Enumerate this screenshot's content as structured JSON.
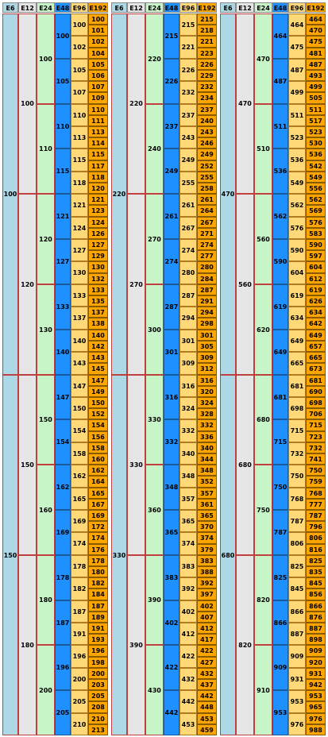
{
  "colors": {
    "E6": "#add8e6",
    "E12": "#e6e6e6",
    "E24": "#c8f5c8",
    "E48": "#1e90ff",
    "E96": "#ffd978",
    "E192": "#ffa500",
    "border": "#c04040"
  },
  "series_names": [
    "E6",
    "E12",
    "E24",
    "E48",
    "E96",
    "E192"
  ],
  "panels": [
    {
      "E6": [
        "100",
        "150"
      ],
      "E12": [
        "100",
        "120",
        "150",
        "180"
      ],
      "E24": [
        "100",
        "110",
        "120",
        "130",
        "150",
        "160",
        "180",
        "200"
      ],
      "E48": [
        "100",
        "105",
        "110",
        "115",
        "121",
        "127",
        "133",
        "140",
        "147",
        "154",
        "162",
        "169",
        "178",
        "187",
        "196",
        "205"
      ],
      "E96": [
        "100",
        "102",
        "105",
        "107",
        "110",
        "113",
        "115",
        "118",
        "121",
        "124",
        "127",
        "130",
        "133",
        "137",
        "140",
        "143",
        "147",
        "150",
        "154",
        "158",
        "162",
        "165",
        "169",
        "174",
        "178",
        "182",
        "187",
        "191",
        "196",
        "200",
        "205",
        "210"
      ],
      "E192": [
        "100",
        "101",
        "102",
        "104",
        "105",
        "106",
        "107",
        "109",
        "110",
        "111",
        "113",
        "114",
        "115",
        "117",
        "118",
        "120",
        "121",
        "123",
        "124",
        "126",
        "127",
        "129",
        "130",
        "132",
        "133",
        "135",
        "137",
        "138",
        "140",
        "142",
        "143",
        "145",
        "147",
        "149",
        "150",
        "152",
        "154",
        "156",
        "158",
        "160",
        "162",
        "164",
        "165",
        "167",
        "169",
        "172",
        "174",
        "176",
        "178",
        "180",
        "182",
        "184",
        "187",
        "189",
        "191",
        "193",
        "196",
        "198",
        "200",
        "203",
        "205",
        "208",
        "210",
        "213"
      ]
    },
    {
      "E6": [
        "220",
        "330"
      ],
      "E12": [
        "220",
        "270",
        "330",
        "390"
      ],
      "E24": [
        "220",
        "240",
        "270",
        "300",
        "330",
        "360",
        "390",
        "430"
      ],
      "E48": [
        "215",
        "226",
        "237",
        "249",
        "261",
        "274",
        "287",
        "301",
        "316",
        "332",
        "348",
        "365",
        "383",
        "402",
        "422",
        "442"
      ],
      "E96": [
        "215",
        "221",
        "226",
        "232",
        "237",
        "243",
        "249",
        "255",
        "261",
        "267",
        "274",
        "280",
        "287",
        "294",
        "301",
        "309",
        "316",
        "324",
        "332",
        "340",
        "348",
        "357",
        "365",
        "374",
        "383",
        "392",
        "402",
        "412",
        "422",
        "432",
        "442",
        "453"
      ],
      "E192": [
        "215",
        "218",
        "221",
        "223",
        "226",
        "229",
        "232",
        "234",
        "237",
        "240",
        "243",
        "246",
        "249",
        "252",
        "255",
        "258",
        "261",
        "264",
        "267",
        "271",
        "274",
        "277",
        "280",
        "284",
        "287",
        "291",
        "294",
        "298",
        "301",
        "305",
        "309",
        "312",
        "316",
        "320",
        "324",
        "328",
        "332",
        "336",
        "340",
        "344",
        "348",
        "352",
        "357",
        "361",
        "365",
        "370",
        "374",
        "379",
        "383",
        "388",
        "392",
        "397",
        "402",
        "407",
        "412",
        "417",
        "422",
        "427",
        "432",
        "437",
        "442",
        "448",
        "453",
        "459"
      ]
    },
    {
      "E6": [
        "470",
        "680"
      ],
      "E12": [
        "470",
        "560",
        "680",
        "820"
      ],
      "E24": [
        "470",
        "510",
        "560",
        "620",
        "680",
        "750",
        "820",
        "910"
      ],
      "E48": [
        "464",
        "487",
        "511",
        "536",
        "562",
        "590",
        "619",
        "649",
        "681",
        "715",
        "750",
        "787",
        "825",
        "866",
        "909",
        "953"
      ],
      "E96": [
        "464",
        "475",
        "487",
        "499",
        "511",
        "523",
        "536",
        "549",
        "562",
        "576",
        "590",
        "604",
        "619",
        "634",
        "649",
        "665",
        "681",
        "698",
        "715",
        "732",
        "750",
        "768",
        "787",
        "806",
        "825",
        "845",
        "866",
        "887",
        "909",
        "931",
        "953",
        "976"
      ],
      "E192": [
        "464",
        "470",
        "475",
        "481",
        "487",
        "493",
        "499",
        "505",
        "511",
        "517",
        "523",
        "530",
        "536",
        "542",
        "549",
        "556",
        "562",
        "569",
        "576",
        "583",
        "590",
        "597",
        "604",
        "612",
        "619",
        "626",
        "634",
        "642",
        "649",
        "657",
        "665",
        "673",
        "681",
        "690",
        "698",
        "706",
        "715",
        "723",
        "732",
        "741",
        "750",
        "759",
        "768",
        "777",
        "787",
        "796",
        "806",
        "816",
        "825",
        "835",
        "845",
        "856",
        "866",
        "876",
        "887",
        "898",
        "909",
        "920",
        "931",
        "942",
        "953",
        "965",
        "976",
        "988"
      ]
    }
  ]
}
